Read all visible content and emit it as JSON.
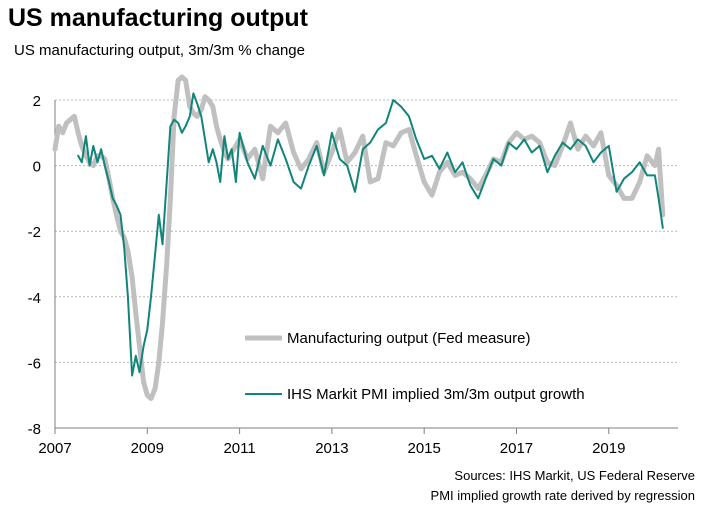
{
  "title": "US manufacturing output",
  "subtitle": "US manufacturing output, 3m/3m % change",
  "sources": [
    "Sources: IHS Markit, US Federal Reserve",
    "PMI implied growth rate derived by regression"
  ],
  "colors": {
    "fed": "#c0c0c0",
    "pmi": "#11857a",
    "grid": "#b8b8b8",
    "axis": "#7f7f7f"
  },
  "chart_data": {
    "type": "line",
    "title": "US manufacturing output",
    "ylabel": "US manufacturing output, 3m/3m % change",
    "xlim": [
      2007,
      2020.5
    ],
    "ylim": [
      -8,
      2
    ],
    "yticks": [
      2,
      0,
      -2,
      -4,
      -6,
      -8
    ],
    "xticks": [
      2007,
      2009,
      2011,
      2013,
      2015,
      2017,
      2019
    ],
    "grid": "horizontal",
    "legend": "inside-bottom-center",
    "series": [
      {
        "name": "Manufacturing output (Fed measure)",
        "x": [
          2007.0,
          2007.08,
          2007.17,
          2007.25,
          2007.33,
          2007.42,
          2007.5,
          2007.58,
          2007.67,
          2007.75,
          2007.83,
          2007.92,
          2008.0,
          2008.08,
          2008.17,
          2008.25,
          2008.33,
          2008.42,
          2008.5,
          2008.58,
          2008.67,
          2008.75,
          2008.83,
          2008.92,
          2009.0,
          2009.08,
          2009.17,
          2009.25,
          2009.33,
          2009.42,
          2009.5,
          2009.58,
          2009.67,
          2009.75,
          2009.83,
          2009.92,
          2010.0,
          2010.08,
          2010.17,
          2010.25,
          2010.33,
          2010.42,
          2010.5,
          2010.58,
          2010.67,
          2010.75,
          2010.83,
          2010.92,
          2011.0,
          2011.17,
          2011.33,
          2011.5,
          2011.67,
          2011.83,
          2012.0,
          2012.17,
          2012.33,
          2012.5,
          2012.67,
          2012.83,
          2013.0,
          2013.17,
          2013.33,
          2013.5,
          2013.67,
          2013.83,
          2014.0,
          2014.17,
          2014.33,
          2014.5,
          2014.67,
          2014.83,
          2015.0,
          2015.17,
          2015.33,
          2015.5,
          2015.67,
          2015.83,
          2016.0,
          2016.17,
          2016.33,
          2016.5,
          2016.67,
          2016.83,
          2017.0,
          2017.17,
          2017.33,
          2017.5,
          2017.67,
          2017.83,
          2018.0,
          2018.17,
          2018.33,
          2018.5,
          2018.67,
          2018.83,
          2019.0,
          2019.17,
          2019.33,
          2019.5,
          2019.67,
          2019.83,
          2020.0,
          2020.08,
          2020.17
        ],
        "values": [
          0.5,
          1.2,
          1.0,
          1.3,
          1.4,
          1.5,
          1.0,
          0.6,
          0.3,
          0.1,
          0.0,
          0.3,
          0.3,
          0.2,
          -0.4,
          -1.0,
          -1.5,
          -2.0,
          -2.2,
          -2.6,
          -3.4,
          -4.5,
          -5.5,
          -6.6,
          -7.0,
          -7.1,
          -6.8,
          -6.0,
          -4.8,
          -3.0,
          -1.0,
          1.5,
          2.6,
          2.7,
          2.6,
          1.8,
          1.6,
          1.5,
          1.7,
          2.1,
          2.0,
          1.8,
          1.2,
          0.8,
          0.4,
          0.2,
          0.4,
          0.6,
          0.8,
          0.2,
          0.5,
          -0.4,
          1.2,
          1.0,
          1.3,
          0.4,
          -0.1,
          0.2,
          0.7,
          -0.2,
          0.4,
          1.1,
          0.1,
          0.4,
          0.9,
          -0.5,
          -0.4,
          0.7,
          0.6,
          1.0,
          1.1,
          0.3,
          -0.5,
          -0.9,
          -0.2,
          0.1,
          -0.3,
          -0.2,
          -0.4,
          -0.7,
          -0.3,
          0.2,
          0.1,
          0.7,
          1.0,
          0.8,
          0.9,
          0.7,
          0.1,
          0.0,
          0.6,
          1.3,
          0.5,
          0.9,
          0.6,
          1.0,
          -0.3,
          -0.6,
          -1.0,
          -1.0,
          -0.5,
          0.3,
          0.0,
          0.5,
          -1.5
        ]
      },
      {
        "name": "IHS Markit PMI implied 3m/3m output growth",
        "x": [
          2007.5,
          2007.58,
          2007.67,
          2007.75,
          2007.83,
          2007.92,
          2008.0,
          2008.08,
          2008.17,
          2008.25,
          2008.33,
          2008.42,
          2008.5,
          2008.58,
          2008.67,
          2008.75,
          2008.83,
          2008.92,
          2009.0,
          2009.08,
          2009.17,
          2009.25,
          2009.33,
          2009.42,
          2009.5,
          2009.58,
          2009.67,
          2009.75,
          2009.83,
          2009.92,
          2010.0,
          2010.08,
          2010.17,
          2010.25,
          2010.33,
          2010.42,
          2010.5,
          2010.58,
          2010.67,
          2010.75,
          2010.83,
          2010.92,
          2011.0,
          2011.17,
          2011.33,
          2011.5,
          2011.67,
          2011.83,
          2012.0,
          2012.17,
          2012.33,
          2012.5,
          2012.67,
          2012.83,
          2013.0,
          2013.17,
          2013.33,
          2013.5,
          2013.67,
          2013.83,
          2014.0,
          2014.17,
          2014.33,
          2014.5,
          2014.67,
          2014.83,
          2015.0,
          2015.17,
          2015.33,
          2015.5,
          2015.67,
          2015.83,
          2016.0,
          2016.17,
          2016.33,
          2016.5,
          2016.67,
          2016.83,
          2017.0,
          2017.17,
          2017.33,
          2017.5,
          2017.67,
          2017.83,
          2018.0,
          2018.17,
          2018.33,
          2018.5,
          2018.67,
          2018.83,
          2019.0,
          2019.17,
          2019.33,
          2019.5,
          2019.67,
          2019.83,
          2020.0,
          2020.08,
          2020.17
        ],
        "values": [
          0.3,
          0.1,
          0.9,
          0.0,
          0.6,
          0.1,
          0.5,
          0.0,
          -0.5,
          -1.0,
          -1.2,
          -1.5,
          -2.5,
          -4.0,
          -6.4,
          -5.8,
          -6.3,
          -5.5,
          -5.0,
          -4.0,
          -2.7,
          -1.5,
          -2.4,
          -0.5,
          1.2,
          1.4,
          1.3,
          1.0,
          1.2,
          1.5,
          2.2,
          1.9,
          1.5,
          0.8,
          0.1,
          0.5,
          0.1,
          -0.5,
          0.9,
          0.2,
          0.5,
          -0.5,
          1.0,
          0.1,
          -0.4,
          0.6,
          0.0,
          0.8,
          0.2,
          -0.5,
          -0.7,
          0.0,
          0.6,
          -0.3,
          1.0,
          0.2,
          0.0,
          -0.8,
          0.5,
          0.7,
          1.1,
          1.3,
          2.0,
          1.8,
          1.5,
          0.8,
          0.2,
          0.3,
          -0.1,
          0.4,
          -0.2,
          0.1,
          -0.6,
          -1.0,
          -0.4,
          0.2,
          0.0,
          0.7,
          0.5,
          0.8,
          0.4,
          0.6,
          -0.2,
          0.3,
          0.7,
          0.5,
          0.8,
          0.6,
          0.1,
          0.4,
          0.6,
          -0.8,
          -0.4,
          -0.2,
          0.1,
          -0.3,
          -0.3,
          -1.0,
          -1.9
        ]
      }
    ]
  }
}
